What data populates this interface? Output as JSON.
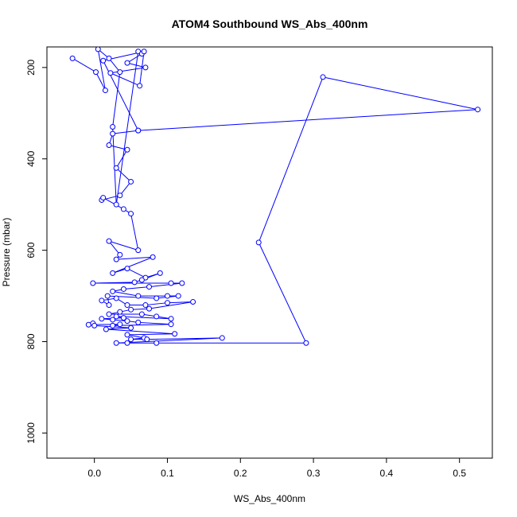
{
  "chart_data": {
    "type": "line",
    "title": "ATOM4 Southbound WS_Abs_400nm",
    "xlabel": "WS_Abs_400nm",
    "ylabel": "Pressure (mbar)",
    "xlim": [
      -0.065,
      0.545
    ],
    "ylim": [
      1055,
      155
    ],
    "y_inverted": true,
    "x_ticks": [
      0.0,
      0.1,
      0.2,
      0.3,
      0.4,
      0.5
    ],
    "x_tick_labels": [
      "0.0",
      "0.1",
      "0.2",
      "0.3",
      "0.4",
      "0.5"
    ],
    "y_ticks": [
      200,
      400,
      600,
      800,
      1000
    ],
    "y_tick_labels": [
      "200",
      "400",
      "600",
      "800",
      "1000"
    ],
    "grid": false,
    "legend": "none",
    "marker": "open-circle",
    "color": "#0000ff",
    "series": [
      {
        "points": [
          [
            -0.03,
            180
          ],
          [
            0.002,
            210
          ],
          [
            0.015,
            250
          ],
          [
            0.005,
            160
          ],
          [
            0.02,
            180
          ],
          [
            0.035,
            210
          ],
          [
            0.025,
            330
          ],
          [
            0.03,
            500
          ],
          [
            0.06,
            165
          ],
          [
            0.065,
            170
          ],
          [
            0.045,
            190
          ],
          [
            0.07,
            200
          ],
          [
            0.022,
            212
          ],
          [
            0.062,
            240
          ],
          [
            0.068,
            165
          ],
          [
            0.012,
            185
          ],
          [
            0.06,
            338
          ],
          [
            0.025,
            345
          ],
          [
            0.02,
            370
          ],
          [
            0.045,
            380
          ],
          [
            0.03,
            420
          ],
          [
            0.05,
            450
          ],
          [
            0.035,
            480
          ],
          [
            0.01,
            490
          ],
          [
            0.012,
            485
          ],
          [
            0.04,
            510
          ],
          [
            0.05,
            520
          ],
          [
            0.06,
            600
          ],
          [
            0.02,
            580
          ],
          [
            0.035,
            610
          ],
          [
            0.03,
            620
          ],
          [
            0.08,
            615
          ],
          [
            0.025,
            650
          ],
          [
            0.045,
            640
          ],
          [
            0.07,
            660
          ],
          [
            0.09,
            650
          ],
          [
            0.065,
            665
          ],
          [
            0.055,
            670
          ],
          [
            -0.002,
            672
          ],
          [
            0.105,
            672
          ],
          [
            0.12,
            672
          ],
          [
            0.075,
            680
          ],
          [
            0.04,
            685
          ],
          [
            0.025,
            690
          ],
          [
            0.06,
            700
          ],
          [
            0.1,
            700
          ],
          [
            0.115,
            700
          ],
          [
            0.085,
            705
          ],
          [
            0.018,
            700
          ],
          [
            0.02,
            720
          ],
          [
            0.01,
            710
          ],
          [
            0.03,
            705
          ],
          [
            0.045,
            720
          ],
          [
            0.07,
            720
          ],
          [
            0.1,
            715
          ],
          [
            0.135,
            713
          ],
          [
            0.075,
            728
          ],
          [
            0.05,
            730
          ],
          [
            0.035,
            735
          ],
          [
            0.02,
            740
          ],
          [
            0.065,
            740
          ],
          [
            0.085,
            745
          ],
          [
            0.105,
            750
          ],
          [
            0.03,
            745
          ],
          [
            0.04,
            748
          ],
          [
            0.01,
            750
          ],
          [
            0.025,
            752
          ],
          [
            0.045,
            755
          ],
          [
            0.06,
            758
          ],
          [
            0.105,
            762
          ],
          [
            0.025,
            765
          ],
          [
            0.035,
            762
          ],
          [
            -0.008,
            763
          ],
          [
            -0.002,
            760
          ],
          [
            0.0,
            765
          ],
          [
            0.05,
            770
          ],
          [
            0.016,
            773
          ],
          [
            0.11,
            783
          ],
          [
            0.045,
            785
          ],
          [
            0.068,
            792
          ],
          [
            0.05,
            795
          ],
          [
            0.072,
            795
          ],
          [
            0.175,
            792
          ],
          [
            0.03,
            803
          ],
          [
            0.045,
            803
          ],
          [
            0.085,
            803
          ],
          [
            0.29,
            803
          ],
          [
            0.225,
            583
          ],
          [
            0.313,
            221
          ],
          [
            0.525,
            292
          ],
          [
            0.06,
            338
          ]
        ]
      }
    ]
  }
}
